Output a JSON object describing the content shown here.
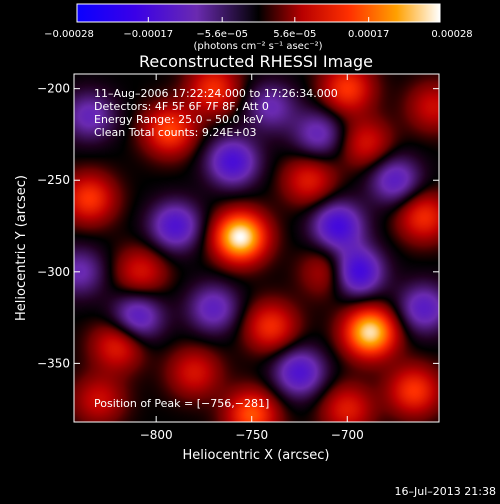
{
  "chart_data": {
    "type": "heatmap",
    "title": "Reconstructed RHESSI Image",
    "xlabel": "Heliocentric X (arcsec)",
    "ylabel": "Heliocentric Y (arcsec)",
    "xlim": [
      -843,
      -652
    ],
    "ylim": [
      -382,
      -192
    ],
    "x_ticks": [
      -800,
      -750,
      -700
    ],
    "y_ticks": [
      -200,
      -250,
      -300,
      -350
    ],
    "x_tick_labels": [
      "−800",
      "−750",
      "−700"
    ],
    "y_tick_labels": [
      "−200",
      "−250",
      "−300",
      "−350"
    ],
    "colorbar": {
      "range": [
        -0.00028,
        0.00028
      ],
      "tick_values": [
        -0.00028,
        -0.00017,
        -5.6e-05,
        5.6e-05,
        0.00017,
        0.00028
      ],
      "tick_labels": [
        "−0.00028",
        "−0.00017",
        "−5.6e−05",
        "5.6e−05",
        "0.00017",
        "0.00028"
      ],
      "units": "(photons cm⁻² s⁻¹ asec⁻²)"
    },
    "annotations": [
      "11–Aug–2006 17:22:24.000 to 17:26:34.000",
      "Detectors: 4F 5F 6F 7F 8F, Att 0",
      "Energy Range: 25.0 – 50.0 keV",
      "Clean     Total counts: 9.24E+03"
    ],
    "peak_label": "Position of Peak = [−756,−281]",
    "peak": [
      -756,
      -281
    ],
    "sources": [
      {
        "x": -756,
        "y": -281,
        "value": 0.00028
      },
      {
        "x": -688,
        "y": -333,
        "value": 0.00026
      },
      {
        "x": -793,
        "y": -223,
        "value": 0.00015
      },
      {
        "x": -770,
        "y": -200,
        "value": 0.00013
      },
      {
        "x": -700,
        "y": -200,
        "value": 0.00014
      },
      {
        "x": -835,
        "y": -260,
        "value": 0.00014
      },
      {
        "x": -660,
        "y": -270,
        "value": 0.00013
      },
      {
        "x": -740,
        "y": -330,
        "value": 0.00013
      },
      {
        "x": -820,
        "y": -340,
        "value": 0.00012
      },
      {
        "x": -750,
        "y": -378,
        "value": 0.00016
      },
      {
        "x": -665,
        "y": -365,
        "value": 0.00014
      },
      {
        "x": -720,
        "y": -250,
        "value": 0.00011
      },
      {
        "x": -808,
        "y": -300,
        "value": 0.0001
      },
      {
        "x": -690,
        "y": -230,
        "value": 0.0001
      },
      {
        "x": -710,
        "y": -300,
        "value": 9e-05
      },
      {
        "x": -780,
        "y": -355,
        "value": 0.0001
      },
      {
        "x": -700,
        "y": -375,
        "value": 0.00011
      },
      {
        "x": -830,
        "y": -370,
        "value": 9e-05
      },
      {
        "x": -655,
        "y": -210,
        "value": 9e-05
      },
      {
        "x": -760,
        "y": -240,
        "value": -0.00016
      },
      {
        "x": -705,
        "y": -275,
        "value": -0.00017
      },
      {
        "x": -790,
        "y": -275,
        "value": -0.00015
      },
      {
        "x": -695,
        "y": -300,
        "value": -0.00019
      },
      {
        "x": -810,
        "y": -325,
        "value": -0.00014
      },
      {
        "x": -660,
        "y": -320,
        "value": -0.00013
      },
      {
        "x": -725,
        "y": -355,
        "value": -0.00015
      },
      {
        "x": -770,
        "y": -320,
        "value": -0.00012
      },
      {
        "x": -740,
        "y": -210,
        "value": -0.0001
      },
      {
        "x": -675,
        "y": -250,
        "value": -0.00013
      },
      {
        "x": -835,
        "y": -215,
        "value": -0.00011
      },
      {
        "x": -840,
        "y": -300,
        "value": -0.0001
      },
      {
        "x": -715,
        "y": -225,
        "value": -0.00011
      }
    ]
  },
  "footer": {
    "timestamp": "16–Jul–2013 21:38"
  }
}
